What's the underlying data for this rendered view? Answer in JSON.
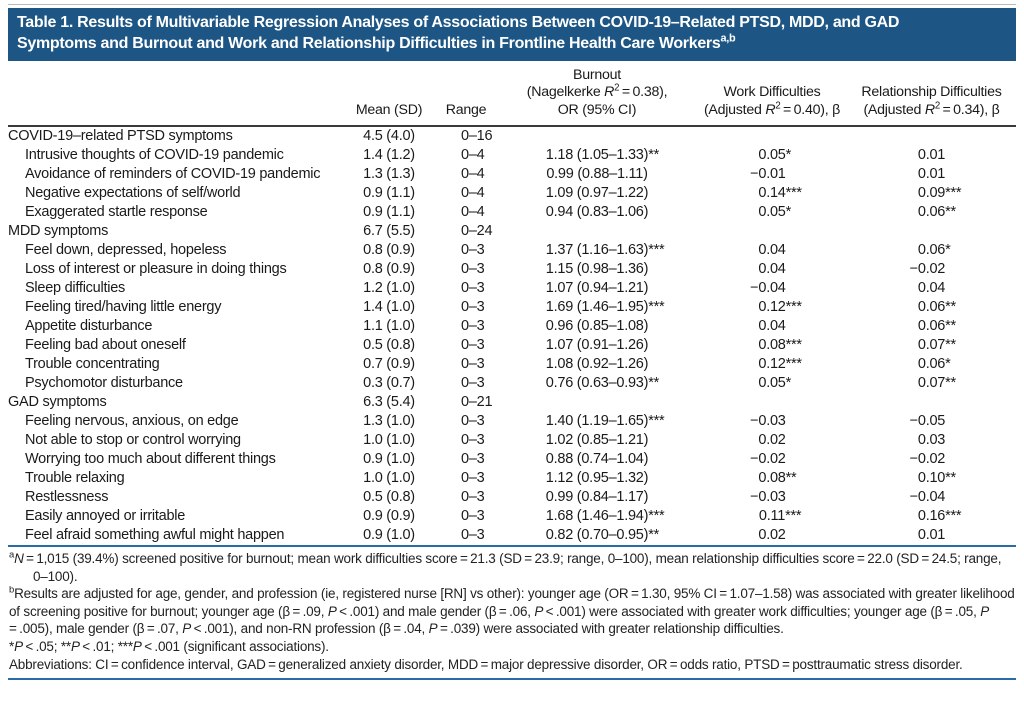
{
  "title": {
    "line1": "Table 1. Results of Multivariable Regression Analyses of Associations Between COVID-19–Related PTSD, MDD, and GAD",
    "line2": [
      {
        "t": "Symptoms and Burnout and Work and Relationship Difficulties in Frontline Health Care Workers"
      },
      {
        "t": "a,b",
        "s": true
      }
    ]
  },
  "colors": {
    "title_bar_background": "#1d5684",
    "title_text": "#ffffff",
    "rule_blue": "#2a6da4",
    "rule_dark": "#3a3a3a",
    "body_text": "#1a1a1a"
  },
  "table": {
    "headers": {
      "label": "",
      "mean": "Mean (SD)",
      "range": "Range",
      "burnout": [
        {
          "t": "Burnout"
        },
        {
          "br": true
        },
        {
          "t": "(Nagelkerke "
        },
        {
          "t": "R",
          "i": true
        },
        {
          "t": "2",
          "s": true
        },
        {
          "t": " = 0.38),"
        },
        {
          "br": true
        },
        {
          "t": "OR (95% CI)"
        }
      ],
      "work": [
        {
          "t": "Work Difficulties"
        },
        {
          "br": true
        },
        {
          "t": "(Adjusted "
        },
        {
          "t": "R",
          "i": true
        },
        {
          "t": "2",
          "s": true
        },
        {
          "t": " = 0.40), β"
        }
      ],
      "relationship": [
        {
          "t": "Relationship Difficulties"
        },
        {
          "br": true
        },
        {
          "t": "(Adjusted "
        },
        {
          "t": "R",
          "i": true
        },
        {
          "t": "2",
          "s": true
        },
        {
          "t": " = 0.34), β"
        }
      ]
    },
    "sections": [
      {
        "row": {
          "label": "COVID-19–related PTSD symptoms",
          "mean": "4.5 (4.0)",
          "range": "0–16",
          "or": "",
          "work": "",
          "rel": ""
        },
        "items": [
          {
            "label": "Intrusive thoughts of COVID-19 pandemic",
            "mean": "1.4 (1.2)",
            "range": "0–4",
            "or": "1.18 (1.05–1.33)**",
            "work": "0.05*",
            "rel": "0.01"
          },
          {
            "label": "Avoidance of reminders of COVID-19 pandemic",
            "mean": "1.3 (1.3)",
            "range": "0–4",
            "or": "0.99 (0.88–1.11)",
            "work": "−0.01",
            "rel": "0.01"
          },
          {
            "label": "Negative expectations of self/world",
            "mean": "0.9 (1.1)",
            "range": "0–4",
            "or": "1.09 (0.97–1.22)",
            "work": "0.14***",
            "rel": "0.09***"
          },
          {
            "label": "Exaggerated startle response",
            "mean": "0.9 (1.1)",
            "range": "0–4",
            "or": "0.94 (0.83–1.06)",
            "work": "0.05*",
            "rel": "0.06**"
          }
        ]
      },
      {
        "row": {
          "label": "MDD symptoms",
          "mean": "6.7 (5.5)",
          "range": "0–24",
          "or": "",
          "work": "",
          "rel": ""
        },
        "items": [
          {
            "label": "Feel down, depressed, hopeless",
            "mean": "0.8 (0.9)",
            "range": "0–3",
            "or": "1.37 (1.16–1.63)***",
            "work": "0.04",
            "rel": "0.06*"
          },
          {
            "label": "Loss of interest or pleasure in doing things",
            "mean": "0.8 (0.9)",
            "range": "0–3",
            "or": "1.15 (0.98–1.36)",
            "work": "0.04",
            "rel": "−0.02"
          },
          {
            "label": "Sleep difficulties",
            "mean": "1.2 (1.0)",
            "range": "0–3",
            "or": "1.07 (0.94–1.21)",
            "work": "−0.04",
            "rel": "0.04"
          },
          {
            "label": "Feeling tired/having little energy",
            "mean": "1.4 (1.0)",
            "range": "0–3",
            "or": "1.69 (1.46–1.95)***",
            "work": "0.12***",
            "rel": "0.06**"
          },
          {
            "label": "Appetite disturbance",
            "mean": "1.1 (1.0)",
            "range": "0–3",
            "or": "0.96 (0.85–1.08)",
            "work": "0.04",
            "rel": "0.06**"
          },
          {
            "label": "Feeling bad about oneself",
            "mean": "0.5 (0.8)",
            "range": "0–3",
            "or": "1.07 (0.91–1.26)",
            "work": "0.08***",
            "rel": "0.07**"
          },
          {
            "label": "Trouble concentrating",
            "mean": "0.7 (0.9)",
            "range": "0–3",
            "or": "1.08 (0.92–1.26)",
            "work": "0.12***",
            "rel": "0.06*"
          },
          {
            "label": "Psychomotor disturbance",
            "mean": "0.3 (0.7)",
            "range": "0–3",
            "or": "0.76 (0.63–0.93)**",
            "work": "0.05*",
            "rel": "0.07**"
          }
        ]
      },
      {
        "row": {
          "label": "GAD symptoms",
          "mean": "6.3 (5.4)",
          "range": "0–21",
          "or": "",
          "work": "",
          "rel": ""
        },
        "items": [
          {
            "label": "Feeling nervous, anxious, on edge",
            "mean": "1.3 (1.0)",
            "range": "0–3",
            "or": "1.40 (1.19–1.65)***",
            "work": "−0.03",
            "rel": "−0.05"
          },
          {
            "label": "Not able to stop or control worrying",
            "mean": "1.0 (1.0)",
            "range": "0–3",
            "or": "1.02 (0.85–1.21)",
            "work": "0.02",
            "rel": "0.03"
          },
          {
            "label": "Worrying too much about different things",
            "mean": "0.9 (1.0)",
            "range": "0–3",
            "or": "0.88 (0.74–1.04)",
            "work": "−0.02",
            "rel": "−0.02"
          },
          {
            "label": "Trouble relaxing",
            "mean": "1.0 (1.0)",
            "range": "0–3",
            "or": "1.12 (0.95–1.32)",
            "work": "0.08**",
            "rel": "0.10**"
          },
          {
            "label": "Restlessness",
            "mean": "0.5 (0.8)",
            "range": "0–3",
            "or": "0.99 (0.84–1.17)",
            "work": "−0.03",
            "rel": "−0.04"
          },
          {
            "label": "Easily annoyed or irritable",
            "mean": "0.9 (0.9)",
            "range": "0–3",
            "or": "1.68 (1.46–1.94)***",
            "work": "0.11***",
            "rel": "0.16***"
          },
          {
            "label": "Feel afraid something awful might happen",
            "mean": "0.9 (1.0)",
            "range": "0–3",
            "or": "0.82 (0.70–0.95)**",
            "work": "0.02",
            "rel": "0.01"
          }
        ]
      }
    ]
  },
  "footnotes": {
    "a": [
      {
        "t": "a",
        "s": true
      },
      {
        "t": "N",
        "i": true
      },
      {
        "t": " = 1,015 (39.4%) screened positive for burnout; mean work difficulties score = 21.3 (SD = 23.9; range, 0–100), mean relationship difficulties score = 22.0 (SD = 24.5; range, 0–100)."
      }
    ],
    "b": [
      {
        "t": "b",
        "s": true
      },
      {
        "t": "Results are adjusted for age, gender, and profession (ie, registered nurse [RN] vs other): younger age (OR = 1.30, 95% CI = 1.07–1.58) was associated with greater likelihood of screening positive for burnout; younger age (β = .09, "
      },
      {
        "t": "P",
        "i": true
      },
      {
        "t": " < .001) and male gender (β = .06, "
      },
      {
        "t": "P",
        "i": true
      },
      {
        "t": " < .001) were associated with greater work difficulties; younger age (β = .05, "
      },
      {
        "t": "P",
        "i": true
      },
      {
        "t": " = .005), male gender (β = .07, "
      },
      {
        "t": "P",
        "i": true
      },
      {
        "t": " < .001), and non-RN profession (β = .04, "
      },
      {
        "t": "P",
        "i": true
      },
      {
        "t": " = .039) were associated with greater relationship difficulties."
      }
    ],
    "significance": [
      {
        "t": "*"
      },
      {
        "t": "P",
        "i": true
      },
      {
        "t": " < .05; **"
      },
      {
        "t": "P",
        "i": true
      },
      {
        "t": " < .01; ***"
      },
      {
        "t": "P",
        "i": true
      },
      {
        "t": " < .001 (significant associations)."
      }
    ],
    "abbreviations": [
      {
        "t": "Abbreviations: CI = confidence interval, GAD = generalized anxiety disorder, MDD = major depressive disorder, OR = odds ratio, PTSD = posttraumatic stress disorder."
      }
    ]
  }
}
